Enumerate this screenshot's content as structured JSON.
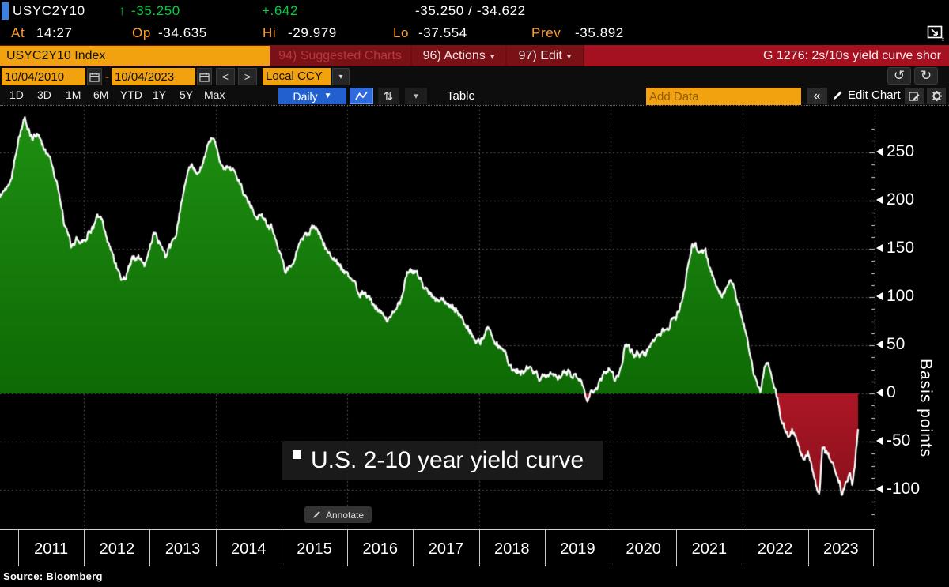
{
  "ticker_bar": {
    "symbol": "USYC2Y10",
    "change_arrow": "↑",
    "last": "-35.250",
    "change": "+.642",
    "bid_ask": "-35.250 / -34.622",
    "at_label": "At",
    "at_value": "14:27",
    "op_label": "Op",
    "op_value": "-34.635",
    "hi_label": "Hi",
    "hi_value": "-29.979",
    "lo_label": "Lo",
    "lo_value": "-37.554",
    "prev_label": "Prev",
    "prev_value": "-35.892"
  },
  "menu_bar": {
    "security_field": "USYC2Y10 Index",
    "suggested_charts": "94) Suggested Charts",
    "actions": "96) Actions",
    "edit": "97) Edit",
    "chart_id_title": "G 1276: 2s/10s yield curve shor"
  },
  "date_bar": {
    "start_date": "10/04/2010",
    "separator": "-",
    "end_date": "10/04/2023",
    "currency": "Local CCY"
  },
  "toolbar": {
    "periods": [
      "1D",
      "3D",
      "1M",
      "6M",
      "YTD",
      "1Y",
      "5Y",
      "Max"
    ],
    "frequency": "Daily",
    "table_label": "Table",
    "add_data_placeholder": "Add Data",
    "collapse_label": "«",
    "edit_chart_label": "Edit Chart"
  },
  "chart": {
    "legend_label": "U.S. 2-10 year yield curve",
    "annotate_label": "Annotate",
    "axis_label": "Basis points",
    "source_label": "Source: Bloomberg"
  },
  "icons": {
    "up_arrow": "↑",
    "undo": "↺",
    "redo": "↻",
    "sort": "⇅",
    "dropdown_caret": "▾",
    "frequency_caret": "▼",
    "collapse": "«"
  },
  "colors": {
    "positive_fill_top": "#1f9012",
    "positive_fill_bottom": "#0e6a05",
    "negative_fill_top": "#ad1726",
    "negative_fill_bottom": "#7e0e19",
    "line": "#ffffff",
    "text_green": "#00cf3f",
    "label_amber": "#ff9e2a",
    "field_orange": "#f2a20f",
    "menu_red": "#7a1117",
    "title_red": "#a61122",
    "frequency_blue": "#2360cf"
  },
  "chart_data": {
    "type": "area",
    "title": "U.S. 2-10 year yield curve",
    "ylabel": "Basis points",
    "units": "basis points",
    "x_range_dates": [
      "10/04/2010",
      "10/04/2023"
    ],
    "ylim": [
      -140,
      297
    ],
    "y_ticks": [
      250,
      200,
      150,
      100,
      50,
      0,
      -50,
      -100
    ],
    "x_ticks": [
      "2011",
      "2012",
      "2013",
      "2014",
      "2015",
      "2016",
      "2017",
      "2018",
      "2019",
      "2020",
      "2021",
      "2022",
      "2023"
    ],
    "grid_years": [
      2012,
      2014,
      2016,
      2018,
      2020,
      2022
    ],
    "legend": "U.S. 2-10 year yield curve",
    "series_keypoints": [
      [
        2010.72,
        203
      ],
      [
        2010.8,
        212
      ],
      [
        2010.88,
        222
      ],
      [
        2010.96,
        252
      ],
      [
        2011.04,
        272
      ],
      [
        2011.1,
        286
      ],
      [
        2011.16,
        272
      ],
      [
        2011.22,
        262
      ],
      [
        2011.3,
        270
      ],
      [
        2011.38,
        256
      ],
      [
        2011.46,
        250
      ],
      [
        2011.52,
        238
      ],
      [
        2011.58,
        222
      ],
      [
        2011.64,
        200
      ],
      [
        2011.7,
        172
      ],
      [
        2011.76,
        160
      ],
      [
        2011.82,
        150
      ],
      [
        2011.88,
        162
      ],
      [
        2011.95,
        158
      ],
      [
        2012.02,
        166
      ],
      [
        2012.1,
        172
      ],
      [
        2012.2,
        184
      ],
      [
        2012.28,
        176
      ],
      [
        2012.36,
        156
      ],
      [
        2012.44,
        142
      ],
      [
        2012.52,
        130
      ],
      [
        2012.58,
        120
      ],
      [
        2012.66,
        128
      ],
      [
        2012.76,
        142
      ],
      [
        2012.84,
        138
      ],
      [
        2012.92,
        132
      ],
      [
        2013.0,
        152
      ],
      [
        2013.08,
        166
      ],
      [
        2013.16,
        158
      ],
      [
        2013.24,
        146
      ],
      [
        2013.32,
        150
      ],
      [
        2013.4,
        164
      ],
      [
        2013.48,
        196
      ],
      [
        2013.56,
        220
      ],
      [
        2013.64,
        236
      ],
      [
        2013.72,
        228
      ],
      [
        2013.8,
        234
      ],
      [
        2013.88,
        250
      ],
      [
        2013.96,
        262
      ],
      [
        2014.04,
        248
      ],
      [
        2014.12,
        236
      ],
      [
        2014.2,
        232
      ],
      [
        2014.28,
        228
      ],
      [
        2014.36,
        218
      ],
      [
        2014.44,
        210
      ],
      [
        2014.52,
        200
      ],
      [
        2014.6,
        192
      ],
      [
        2014.68,
        184
      ],
      [
        2014.76,
        182
      ],
      [
        2014.84,
        172
      ],
      [
        2014.92,
        158
      ],
      [
        2015.0,
        146
      ],
      [
        2015.06,
        126
      ],
      [
        2015.14,
        132
      ],
      [
        2015.22,
        146
      ],
      [
        2015.3,
        158
      ],
      [
        2015.38,
        164
      ],
      [
        2015.46,
        172
      ],
      [
        2015.52,
        168
      ],
      [
        2015.6,
        158
      ],
      [
        2015.68,
        148
      ],
      [
        2015.76,
        142
      ],
      [
        2015.84,
        136
      ],
      [
        2015.92,
        128
      ],
      [
        2016.0,
        122
      ],
      [
        2016.08,
        112
      ],
      [
        2016.16,
        104
      ],
      [
        2016.24,
        106
      ],
      [
        2016.32,
        98
      ],
      [
        2016.4,
        94
      ],
      [
        2016.48,
        88
      ],
      [
        2016.56,
        80
      ],
      [
        2016.62,
        78
      ],
      [
        2016.7,
        86
      ],
      [
        2016.78,
        96
      ],
      [
        2016.84,
        102
      ],
      [
        2016.9,
        122
      ],
      [
        2016.98,
        126
      ],
      [
        2017.06,
        122
      ],
      [
        2017.14,
        116
      ],
      [
        2017.22,
        112
      ],
      [
        2017.3,
        106
      ],
      [
        2017.38,
        98
      ],
      [
        2017.46,
        94
      ],
      [
        2017.54,
        90
      ],
      [
        2017.62,
        86
      ],
      [
        2017.7,
        82
      ],
      [
        2017.78,
        74
      ],
      [
        2017.86,
        64
      ],
      [
        2017.94,
        56
      ],
      [
        2018.02,
        52
      ],
      [
        2018.08,
        62
      ],
      [
        2018.14,
        72
      ],
      [
        2018.22,
        58
      ],
      [
        2018.3,
        50
      ],
      [
        2018.38,
        44
      ],
      [
        2018.46,
        34
      ],
      [
        2018.54,
        28
      ],
      [
        2018.62,
        24
      ],
      [
        2018.7,
        22
      ],
      [
        2018.78,
        26
      ],
      [
        2018.86,
        24
      ],
      [
        2018.94,
        16
      ],
      [
        2019.02,
        16
      ],
      [
        2019.1,
        18
      ],
      [
        2019.18,
        14
      ],
      [
        2019.26,
        18
      ],
      [
        2019.34,
        20
      ],
      [
        2019.42,
        16
      ],
      [
        2019.5,
        20
      ],
      [
        2019.58,
        10
      ],
      [
        2019.64,
        -2
      ],
      [
        2019.7,
        4
      ],
      [
        2019.78,
        10
      ],
      [
        2019.86,
        16
      ],
      [
        2019.94,
        22
      ],
      [
        2020.02,
        26
      ],
      [
        2020.08,
        16
      ],
      [
        2020.16,
        30
      ],
      [
        2020.22,
        52
      ],
      [
        2020.28,
        48
      ],
      [
        2020.36,
        42
      ],
      [
        2020.44,
        44
      ],
      [
        2020.52,
        42
      ],
      [
        2020.6,
        46
      ],
      [
        2020.68,
        52
      ],
      [
        2020.76,
        58
      ],
      [
        2020.84,
        66
      ],
      [
        2020.92,
        78
      ],
      [
        2021.0,
        84
      ],
      [
        2021.08,
        98
      ],
      [
        2021.16,
        128
      ],
      [
        2021.24,
        152
      ],
      [
        2021.3,
        148
      ],
      [
        2021.36,
        140
      ],
      [
        2021.44,
        148
      ],
      [
        2021.52,
        126
      ],
      [
        2021.6,
        112
      ],
      [
        2021.68,
        104
      ],
      [
        2021.76,
        114
      ],
      [
        2021.84,
        112
      ],
      [
        2021.92,
        94
      ],
      [
        2022.0,
        80
      ],
      [
        2022.08,
        60
      ],
      [
        2022.16,
        32
      ],
      [
        2022.24,
        8
      ],
      [
        2022.28,
        2
      ],
      [
        2022.34,
        26
      ],
      [
        2022.4,
        32
      ],
      [
        2022.46,
        20
      ],
      [
        2022.52,
        4
      ],
      [
        2022.58,
        -22
      ],
      [
        2022.64,
        -34
      ],
      [
        2022.7,
        -42
      ],
      [
        2022.76,
        -38
      ],
      [
        2022.82,
        -48
      ],
      [
        2022.88,
        -62
      ],
      [
        2022.94,
        -72
      ],
      [
        2023.0,
        -62
      ],
      [
        2023.06,
        -78
      ],
      [
        2023.12,
        -96
      ],
      [
        2023.17,
        -107
      ],
      [
        2023.22,
        -52
      ],
      [
        2023.28,
        -60
      ],
      [
        2023.34,
        -68
      ],
      [
        2023.4,
        -78
      ],
      [
        2023.46,
        -90
      ],
      [
        2023.52,
        -104
      ],
      [
        2023.58,
        -94
      ],
      [
        2023.64,
        -78
      ],
      [
        2023.68,
        -88
      ],
      [
        2023.72,
        -66
      ],
      [
        2023.76,
        -37
      ]
    ]
  }
}
